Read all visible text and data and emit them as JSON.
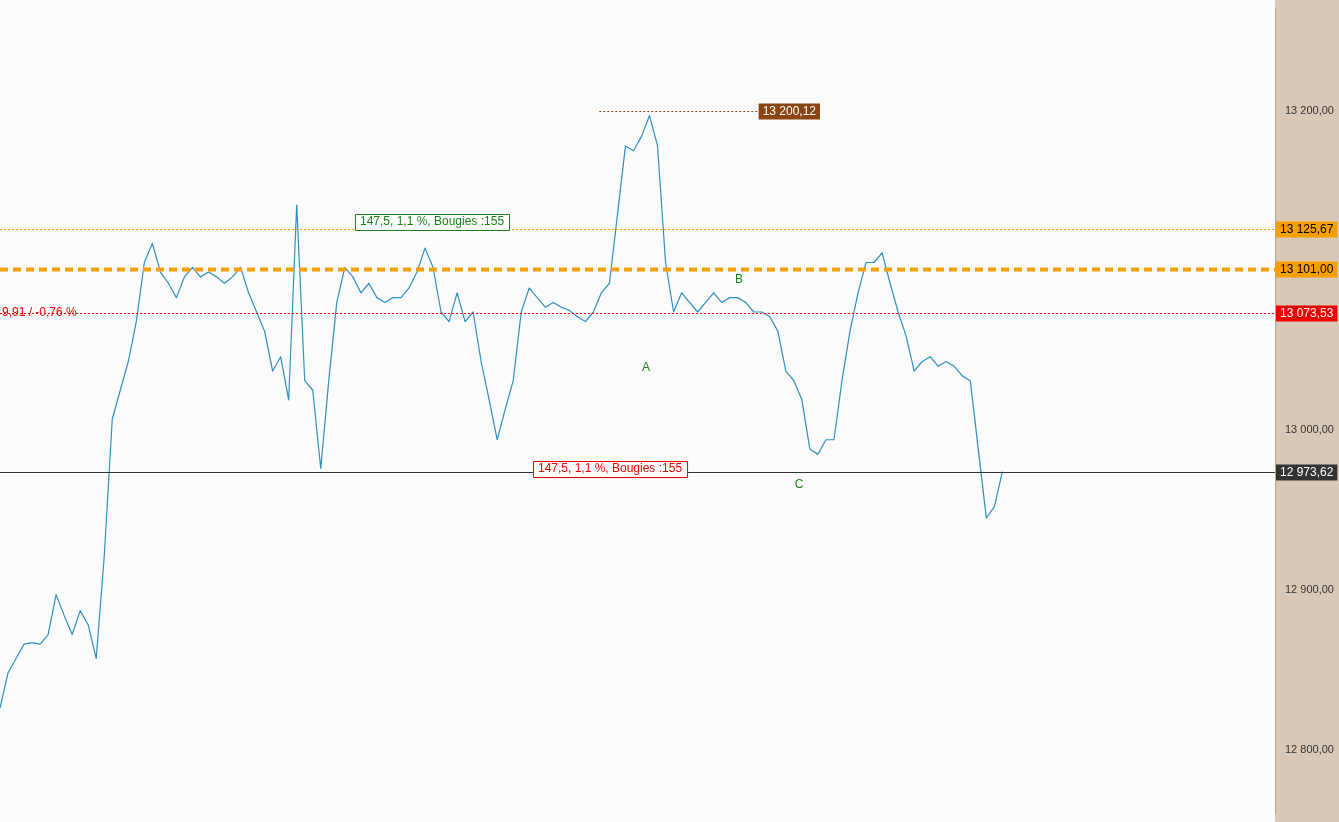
{
  "chart_data": {
    "type": "line",
    "categories": [
      null,
      null,
      null,
      null,
      null,
      null,
      null,
      null,
      null,
      null,
      null,
      null,
      null,
      null,
      null,
      null,
      null,
      null,
      null,
      null,
      null,
      null,
      null,
      null,
      null,
      null,
      null,
      null,
      null,
      null,
      null,
      null,
      null,
      null,
      null,
      null,
      null,
      null,
      null,
      null,
      null,
      null,
      null,
      null,
      null,
      null,
      null,
      null,
      null,
      null,
      null,
      null,
      null,
      null,
      null,
      null,
      null,
      null,
      null,
      null,
      null,
      null,
      null,
      null,
      null,
      null,
      null,
      null,
      null,
      null,
      null,
      null,
      null,
      null,
      null,
      null,
      null,
      null,
      null,
      null,
      null,
      null,
      null,
      null,
      null,
      null,
      null,
      null,
      null,
      null,
      null,
      null,
      null,
      null,
      null,
      null,
      null,
      null,
      null,
      null,
      null,
      null,
      null,
      null,
      null,
      null,
      null,
      null,
      null,
      null,
      null,
      null,
      null,
      null,
      null,
      null,
      null,
      null,
      null,
      null,
      null,
      null,
      null,
      null,
      null,
      null,
      null,
      null,
      null,
      null,
      null,
      null,
      null,
      null,
      null,
      null,
      null,
      null,
      null,
      null,
      null,
      null,
      null,
      null,
      null,
      null,
      null,
      null,
      null,
      null,
      null,
      null,
      null,
      null,
      null,
      null,
      null,
      null,
      null,
      null
    ],
    "series": [
      {
        "color": "#2e8fc0",
        "values": [
          12826,
          12848,
          12857,
          12866,
          12867,
          12866,
          12872,
          12897,
          12884,
          12872,
          12887,
          12878,
          12857,
          12921,
          13007,
          13025,
          13043,
          13068,
          13105,
          13117,
          13099,
          13092,
          13083,
          13096,
          13102,
          13096,
          13099,
          13096,
          13092,
          13096,
          13102,
          13086,
          13074,
          13062,
          13037,
          13046,
          13019,
          13141,
          13031,
          13025,
          12976,
          13031,
          13080,
          13102,
          13096,
          13086,
          13092,
          13083,
          13080,
          13083,
          13083,
          13089,
          13099,
          13114,
          13102,
          13074,
          13068,
          13086,
          13068,
          13074,
          13043,
          13019,
          12994,
          13013,
          13031,
          13074,
          13089,
          13083,
          13077,
          13080,
          13077,
          13075,
          13071,
          13068,
          13074,
          13086,
          13092,
          13135,
          13178,
          13175,
          13184,
          13197,
          13178,
          13105,
          13074,
          13086,
          13080,
          13074,
          13080,
          13086,
          13080,
          13083,
          13083,
          13080,
          13074,
          13074,
          13071,
          13062,
          13037,
          13031,
          13019,
          12988,
          12985,
          12994,
          12994,
          13031,
          13062,
          13086,
          13105,
          13105,
          13111,
          13092,
          13074,
          13059,
          13037,
          13043,
          13046,
          13040,
          13043,
          13040,
          13034,
          13031,
          12988,
          12945,
          12952,
          12974,
          null,
          null,
          null,
          null,
          null,
          null,
          null,
          null,
          null,
          null,
          null,
          null,
          null,
          null,
          null,
          null,
          null,
          null,
          null,
          null,
          null,
          null,
          null,
          null,
          null,
          null,
          null,
          null,
          null,
          null,
          null,
          null,
          null,
          null
        ]
      }
    ],
    "ylim": [
      12760,
      13264
    ],
    "yticks": [
      {
        "value": 12800,
        "label": "12 800,00"
      },
      {
        "value": 12900,
        "label": "12 900,00"
      },
      {
        "value": 13000,
        "label": "13 000,00"
      },
      {
        "value": 13200,
        "label": "13 200,00"
      }
    ],
    "tick_labels": "y",
    "grid": false,
    "legend": false,
    "marker": "none",
    "line_style": "solid",
    "ref_lines": [
      {
        "axis": "y",
        "value": 13200.12,
        "label": "13 200,12",
        "color": "#8b4513",
        "line_style": "dotted"
      },
      {
        "axis": "y",
        "value": 13125.67,
        "label": "13 125,67",
        "color": "#f5a000",
        "line_style": "dotted"
      },
      {
        "axis": "y",
        "value": 13101,
        "label": "13 101,00",
        "color": "#f5a000",
        "line_style": "dashed"
      },
      {
        "axis": "y",
        "value": 13073.53,
        "label": "13 073,53",
        "color": "#ee0000",
        "line_style": "dotted"
      },
      {
        "axis": "y",
        "value": 12973.62,
        "label": "12 973,62",
        "color": "#333333",
        "line_style": "solid"
      }
    ],
    "annotations": [
      "9,91 / -0,76 %",
      "147,5, 1,1 %, Bougies :155",
      "147,5, 1,1 %, Bougies :155",
      "A",
      "B",
      "C"
    ]
  }
}
